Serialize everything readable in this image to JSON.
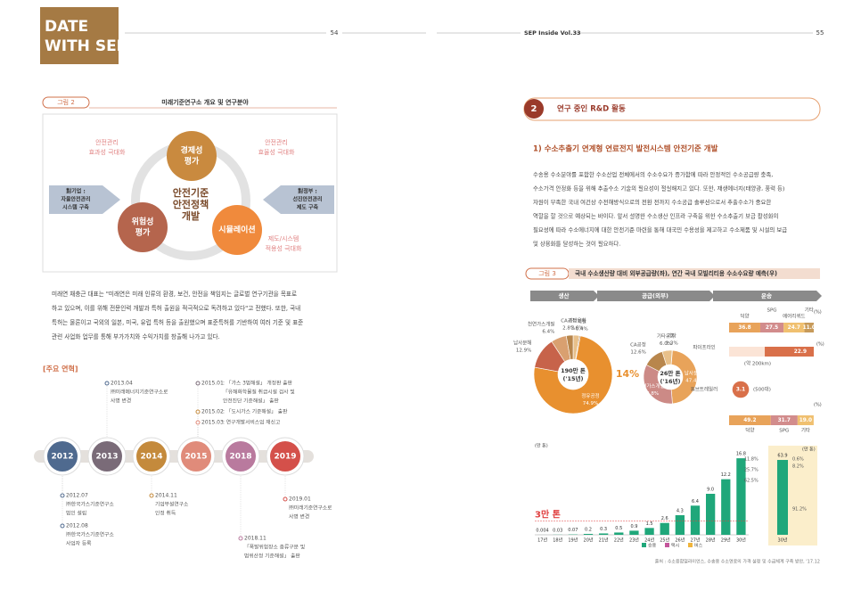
{
  "header": {
    "brand": [
      "DATE",
      "WITH SEP"
    ],
    "left_page_number": "54",
    "right_title": "SEP Inside Vol.33",
    "right_page_number": "55"
  },
  "figure2": {
    "label": "그림 2",
    "title": "미래기준연구소 개요 및 연구분야",
    "center": [
      "안전기준",
      "안전정책",
      "개발"
    ],
    "nodes": [
      {
        "lines": [
          "경제성",
          "평가"
        ],
        "color": "#c98a3f"
      },
      {
        "lines": [
          "위험성",
          "평가"
        ],
        "color": "#b5654d"
      },
      {
        "lines": [
          "시뮬레이션"
        ],
        "color": "#f08a3c"
      }
    ],
    "goals": [
      [
        "안전관리",
        "효과성 극대화"
      ],
      [
        "안전관리",
        "효율성 극대화"
      ],
      [
        "제도/시스템",
        "적용성 극대화"
      ]
    ],
    "arrows": [
      [
        "對기업 :",
        "자율안전관리",
        "시스템 구축"
      ],
      [
        "對정부 :",
        "선진안전관리",
        "제도 구축"
      ]
    ]
  },
  "intro_paragraph": [
    "미래연 채충근 대표는 \"미래연은 미래 인류의 환경, 보건, 안전을 책임지는 글로벌 연구기관을 목표로",
    "하고 있으며, 이를 위해 전문인력 개발과 특허 출원을 적극적으로 독려하고 있다\"고 전했다. 또한, 국내",
    "특허는 물론이고 국외의 일본, 미국, 유럽 특허 등을 출원했으며 표준특허를 기반하여 여러 기준 및 표준",
    "관련 사업화 업무를 통해 부가가치와 수익가치를 창출해 나가고 있다."
  ],
  "history": {
    "heading": "[주요 연혁]",
    "years": [
      {
        "year": "2012",
        "color": "#4f6a8f"
      },
      {
        "year": "2013",
        "color": "#7a6b78"
      },
      {
        "year": "2014",
        "color": "#c48a3c"
      },
      {
        "year": "2015",
        "color": "#e08b7a"
      },
      {
        "year": "2018",
        "color": "#b97a9e"
      },
      {
        "year": "2019",
        "color": "#d4504a"
      }
    ],
    "events": [
      {
        "date": "2013.04",
        "lines": [
          "㈜미래에너지기준연구소로",
          "사명 변경"
        ]
      },
      {
        "date": "2015.01",
        "lines": [
          ": 「가스 3법해설」 개정판 출판",
          "「유해화학물질 취급시설 검사 및",
          "안전진단 기준해설」 출판"
        ]
      },
      {
        "date": "2015.02",
        "lines": [
          ": 「도시가스 기준해설」 출판"
        ]
      },
      {
        "date": "2015.03",
        "lines": [
          ": 연구개발서비스업 재신고"
        ]
      },
      {
        "date": "2012.07",
        "lines": [
          "㈜한국가스기준연구소",
          "법인 설립"
        ]
      },
      {
        "date": "2012.08",
        "lines": [
          "㈜한국가스기준연구소",
          "사업자 등록"
        ]
      },
      {
        "date": "2014.11",
        "lines": [
          "기업부설연구소",
          "인정 취득"
        ]
      },
      {
        "date": "2018.11",
        "lines": [
          "「폭발위험장소 종류구분 및",
          "범위산정 기준해설」 출판"
        ]
      },
      {
        "date": "2019.01",
        "lines": [
          "㈜미래기준연구소로",
          "사명 변경"
        ]
      }
    ]
  },
  "section": {
    "number": "2",
    "title": "연구 중인 R&D 활동",
    "subtitle": "1) 수소추출기 연계형 연료전지 발전시스템 안전기준 개발",
    "paragraph": [
      "수송용 수소분야를 포함한 수소산업 전체에서의 수소수요가 증가함에 따라 안정적인 수소공급량 충족,",
      "수소가격 안정화 등을 위해 추출수소 기술의 필요성이 절실해지고 있다. 또한, 재생에너지(태양광, 풍력 등)",
      "자원이 부족한 국내 여건상 수전해방식으로의 전환 전까지 수소공급 솔루션으로서 추출수소가 중요한",
      "역할을 할 것으로 예상되는 바이다. 앞서 설명한 수소생산 인프라 구축을 위한 수소추출기 보급 활성화의",
      "필요성에 따라 수소에너지에 대한 안전기준 마련을 통해 대국민 수용성을 제고하고 수소제품 및 시설의 보급",
      "및 상용화를 달성하는 것이 필요하다."
    ]
  },
  "figure3": {
    "label": "그림 3",
    "title": "국내 수소생산량 대비 외부공급량(좌), 연간 국내 모빌리티용 수소수요량 예측(우)",
    "headers": [
      "생산",
      "공급(외부)",
      "운송"
    ],
    "ratio": "14%",
    "pies": [
      {
        "center": [
          "190만 톤",
          "('15년)"
        ],
        "segments": [
          {
            "name": "기타유화",
            "value": 2.6,
            "value_label": "2.6%",
            "color": "#e8c08a"
          },
          {
            "name": "제철",
            "value": 0.4,
            "value_label": "0.4%",
            "color": "#8c5a3a"
          },
          {
            "name": "정유공정",
            "value": 74.9,
            "value_label": "74.9%",
            "color": "#e8902f"
          },
          {
            "name": "납사분해",
            "value": 12.9,
            "value_label": "12.9%",
            "color": "#c7634a"
          },
          {
            "name": "천연가스개질",
            "value": 6.4,
            "value_label": "6.4%",
            "color": "#d9a070"
          },
          {
            "name": "CA공정",
            "value": 2.8,
            "value_label": "2.8%",
            "color": "#b8864c"
          }
        ]
      },
      {
        "center": [
          "26만 톤",
          "('16년)"
        ],
        "segments": [
          {
            "name": "기타",
            "value": 1.3,
            "value_label": "1.3%",
            "color": "#8c5a3a"
          },
          {
            "name": "납사분해",
            "value": 47.4,
            "value_label": "47.4%",
            "color": "#e8a35a"
          },
          {
            "name": "천연가스개질",
            "value": 33.8,
            "value_label": "33.8%",
            "color": "#cc8a86"
          },
          {
            "name": "CA공정",
            "value": 12.6,
            "value_label": "12.6%",
            "color": "#b8864c"
          },
          {
            "name": "기타유화",
            "value": 6.0,
            "value_label": "6.0%",
            "color": "#e8c08a"
          }
        ]
      }
    ],
    "supply_unit": "(%)",
    "supply_shares": [
      {
        "name": "덕양",
        "value": 36.8,
        "value_label": "36.8",
        "color": "#e8a35a"
      },
      {
        "name": "SPG",
        "value": 27.5,
        "value_label": "27.5",
        "color": "#d28c8c"
      },
      {
        "name": "에어리퀴드",
        "value": 24.7,
        "value_label": "24.7",
        "color": "#f0c070"
      },
      {
        "name": "기타",
        "value": 11.0,
        "value_label": "11.0",
        "color": "#c79a5a"
      }
    ],
    "pipeline": {
      "name": "파이프라인",
      "value": 22.9,
      "value_label": "22.9",
      "note": "(약 200km)",
      "unit": "(%)"
    },
    "tube": {
      "name": "튜브트레일러",
      "value": 3.1,
      "value_label": "3.1",
      "note": "(500대)"
    },
    "tube_unit": "(%)",
    "tube_shares": [
      {
        "name": "덕양",
        "value": 49.2,
        "value_label": "49.2",
        "color": "#e8a35a"
      },
      {
        "name": "SPG",
        "value": 31.7,
        "value_label": "31.7",
        "color": "#d28c8c"
      },
      {
        "name": "기타",
        "value": 19.0,
        "value_label": "19.0",
        "color": "#f0c070"
      }
    ],
    "demand": {
      "unit": "(만 톤)",
      "categories": [
        "17년",
        "18년",
        "19년",
        "20년",
        "21년",
        "22년",
        "23년",
        "24년",
        "25년",
        "26년",
        "27년",
        "28년",
        "29년",
        "30년"
      ],
      "values": [
        0.004,
        0.03,
        0.07,
        0.2,
        0.3,
        0.5,
        0.9,
        1.5,
        2.6,
        4.3,
        6.4,
        9.0,
        12.2,
        16.8
      ],
      "value_labels": [
        "0.004",
        "0.03",
        "0.07",
        "0.2",
        "0.3",
        "0.5",
        "0.9",
        "1.5",
        "2.6",
        "4.3",
        "6.4",
        "9.0",
        "12.2",
        "16.8"
      ],
      "ylim": [
        0,
        18
      ],
      "reference": {
        "value": 3,
        "label": "3만 톤"
      },
      "last_shares": [
        "11.8%",
        "25.7%",
        "62.5%"
      ],
      "inset": {
        "unit": "(만 톤)",
        "category": "30년",
        "value": 63.9,
        "ylim": [
          0,
          70
        ],
        "shares": [
          "0.6%",
          "8.2%",
          "91.2%"
        ]
      },
      "legend": [
        {
          "name": "승용",
          "color": "#1fa77a"
        },
        {
          "name": "택시",
          "color": "#c4559b"
        },
        {
          "name": "버스",
          "color": "#f0b43c"
        }
      ]
    },
    "source": "출처 : 수소융합얼라이언스, 수송용 수소연료의 가격 설정 및 수급체계 구축 방안, '17.12"
  }
}
